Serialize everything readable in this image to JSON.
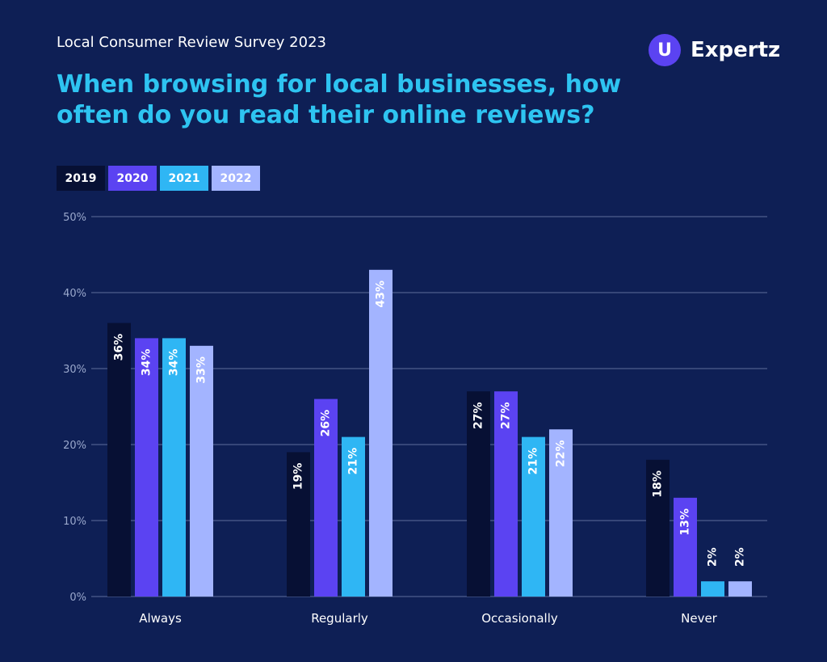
{
  "header": {
    "subtitle": "Local Consumer Review Survey 2023",
    "title": "When browsing for local businesses, how often do you read their online reviews?"
  },
  "brand": {
    "logo_glyph": "U",
    "name": "Expertz",
    "color": "#5b43f2"
  },
  "chart_data": {
    "type": "bar",
    "categories": [
      "Always",
      "Regularly",
      "Occasionally",
      "Never"
    ],
    "series": [
      {
        "name": "2019",
        "color": "#071034",
        "values": [
          36,
          19,
          27,
          18
        ]
      },
      {
        "name": "2020",
        "color": "#5b43f2",
        "values": [
          34,
          26,
          27,
          13
        ]
      },
      {
        "name": "2021",
        "color": "#2fb6f4",
        "values": [
          34,
          21,
          21,
          2
        ]
      },
      {
        "name": "2022",
        "color": "#a3b4ff",
        "values": [
          33,
          43,
          22,
          2
        ]
      }
    ],
    "yticks": [
      "0%",
      "10%",
      "20%",
      "30%",
      "40%",
      "50%"
    ],
    "ylim": [
      0,
      50
    ],
    "value_suffix": "%",
    "grid": true,
    "legend_position": "top-left"
  }
}
